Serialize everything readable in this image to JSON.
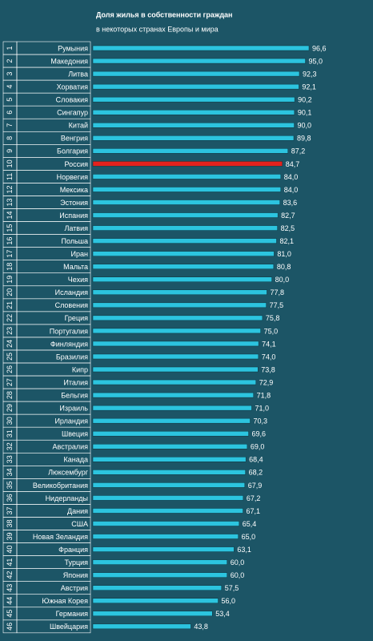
{
  "chart_data": {
    "type": "barh",
    "title": "Доля жилья в собственности  граждан",
    "subtitle": "в некоторых странах Европы и мира",
    "ranks": [
      1,
      2,
      3,
      4,
      5,
      6,
      7,
      8,
      9,
      10,
      11,
      12,
      13,
      14,
      15,
      16,
      17,
      18,
      19,
      20,
      21,
      22,
      23,
      24,
      25,
      26,
      27,
      28,
      29,
      30,
      31,
      32,
      33,
      34,
      35,
      36,
      37,
      38,
      39,
      40,
      41,
      42,
      43,
      44,
      45,
      46
    ],
    "categories": [
      "Румыния",
      "Македония",
      "Литва",
      "Хорватия",
      "Словакия",
      "Сингапур",
      "Китай",
      "Венгрия",
      "Болгария",
      "Россия",
      "Норвегия",
      "Мексика",
      "Эстония",
      "Испания",
      "Латвия",
      "Польша",
      "Иран",
      "Мальта",
      "Чехия",
      "Исландия",
      "Словения",
      "Греция",
      "Португалия",
      "Финляндия",
      "Бразилия",
      "Кипр",
      "Италия",
      "Бельгия",
      "Израиль",
      "Ирландия",
      "Швеция",
      "Австралия",
      "Канада",
      "Люксембург",
      "Великобритания",
      "Нидерланды",
      "Дания",
      "США",
      "Новая Зеландия",
      "Франция",
      "Турция",
      "Япония",
      "Австрия",
      "Южная Корея",
      "Германия",
      "Швейцария"
    ],
    "values": [
      96.6,
      95.0,
      92.3,
      92.1,
      90.2,
      90.1,
      90.0,
      89.8,
      87.2,
      84.7,
      84.0,
      84.0,
      83.6,
      82.7,
      82.5,
      82.1,
      81.0,
      80.8,
      80.0,
      77.8,
      77.5,
      75.8,
      75.0,
      74.1,
      74.0,
      73.8,
      72.9,
      71.8,
      71.0,
      70.3,
      69.6,
      69.0,
      68.4,
      68.2,
      67.9,
      67.2,
      67.1,
      65.4,
      65.0,
      63.1,
      60.0,
      60.0,
      57.5,
      56.0,
      53.4,
      43.8
    ],
    "value_labels": [
      "96,6",
      "95,0",
      "92,3",
      "92,1",
      "90,2",
      "90,1",
      "90,0",
      "89,8",
      "87,2",
      "84,7",
      "84,0",
      "84,0",
      "83,6",
      "82,7",
      "82,5",
      "82,1",
      "81,0",
      "80,8",
      "80,0",
      "77,8",
      "77,5",
      "75,8",
      "75,0",
      "74,1",
      "74,0",
      "73,8",
      "72,9",
      "71,8",
      "71,0",
      "70,3",
      "69,6",
      "69,0",
      "68,4",
      "68,2",
      "67,9",
      "67,2",
      "67,1",
      "65,4",
      "65,0",
      "63,1",
      "60,0",
      "60,0",
      "57,5",
      "56,0",
      "53,4",
      "43,8"
    ],
    "colors": [
      "#2cc4df",
      "#2cc4df",
      "#2cc4df",
      "#2cc4df",
      "#2cc4df",
      "#2cc4df",
      "#2cc4df",
      "#2cc4df",
      "#2cc4df",
      "#e3221d",
      "#2cc4df",
      "#2cc4df",
      "#2cc4df",
      "#2cc4df",
      "#2cc4df",
      "#2cc4df",
      "#2cc4df",
      "#2cc4df",
      "#2cc4df",
      "#2cc4df",
      "#2cc4df",
      "#2cc4df",
      "#2cc4df",
      "#2cc4df",
      "#2cc4df",
      "#2cc4df",
      "#2cc4df",
      "#2cc4df",
      "#2cc4df",
      "#2cc4df",
      "#2cc4df",
      "#2cc4df",
      "#2cc4df",
      "#2cc4df",
      "#2cc4df",
      "#2cc4df",
      "#2cc4df",
      "#2cc4df",
      "#2cc4df",
      "#2cc4df",
      "#2cc4df",
      "#2cc4df",
      "#2cc4df",
      "#2cc4df",
      "#2cc4df",
      "#2cc4df"
    ],
    "xlim": [
      0,
      100
    ]
  }
}
